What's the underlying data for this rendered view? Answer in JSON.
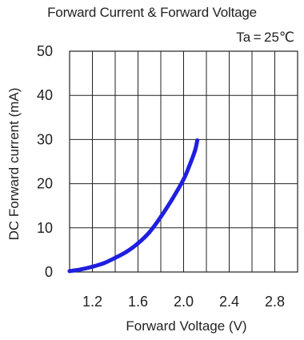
{
  "chart_data": {
    "type": "line",
    "title": "Forward Current & Forward Voltage",
    "condition": "Ta = 25℃",
    "xlabel": "Forward Voltage (V)",
    "ylabel": "DC Forward current (mA)",
    "xlim": [
      1.0,
      3.0
    ],
    "ylim": [
      0,
      50
    ],
    "x_ticks": [
      1.2,
      1.6,
      2.0,
      2.4,
      2.8
    ],
    "x_tick_labels": [
      "1.2",
      "1.6",
      "2.0",
      "2.4",
      "2.8"
    ],
    "y_ticks": [
      0,
      10,
      20,
      30,
      40,
      50
    ],
    "y_tick_labels": [
      "0",
      "10",
      "20",
      "30",
      "40",
      "50"
    ],
    "grid": true,
    "line_color": "#1f1fe0",
    "series": [
      {
        "x": [
          1.0,
          1.1,
          1.2,
          1.3,
          1.4,
          1.5,
          1.6,
          1.7,
          1.8,
          1.9,
          2.0,
          2.05,
          2.1,
          2.12
        ],
        "values": [
          0.2,
          0.6,
          1.2,
          2.0,
          3.2,
          4.6,
          6.5,
          9.0,
          12.5,
          16.5,
          21.0,
          24.0,
          27.5,
          29.8
        ]
      }
    ]
  }
}
